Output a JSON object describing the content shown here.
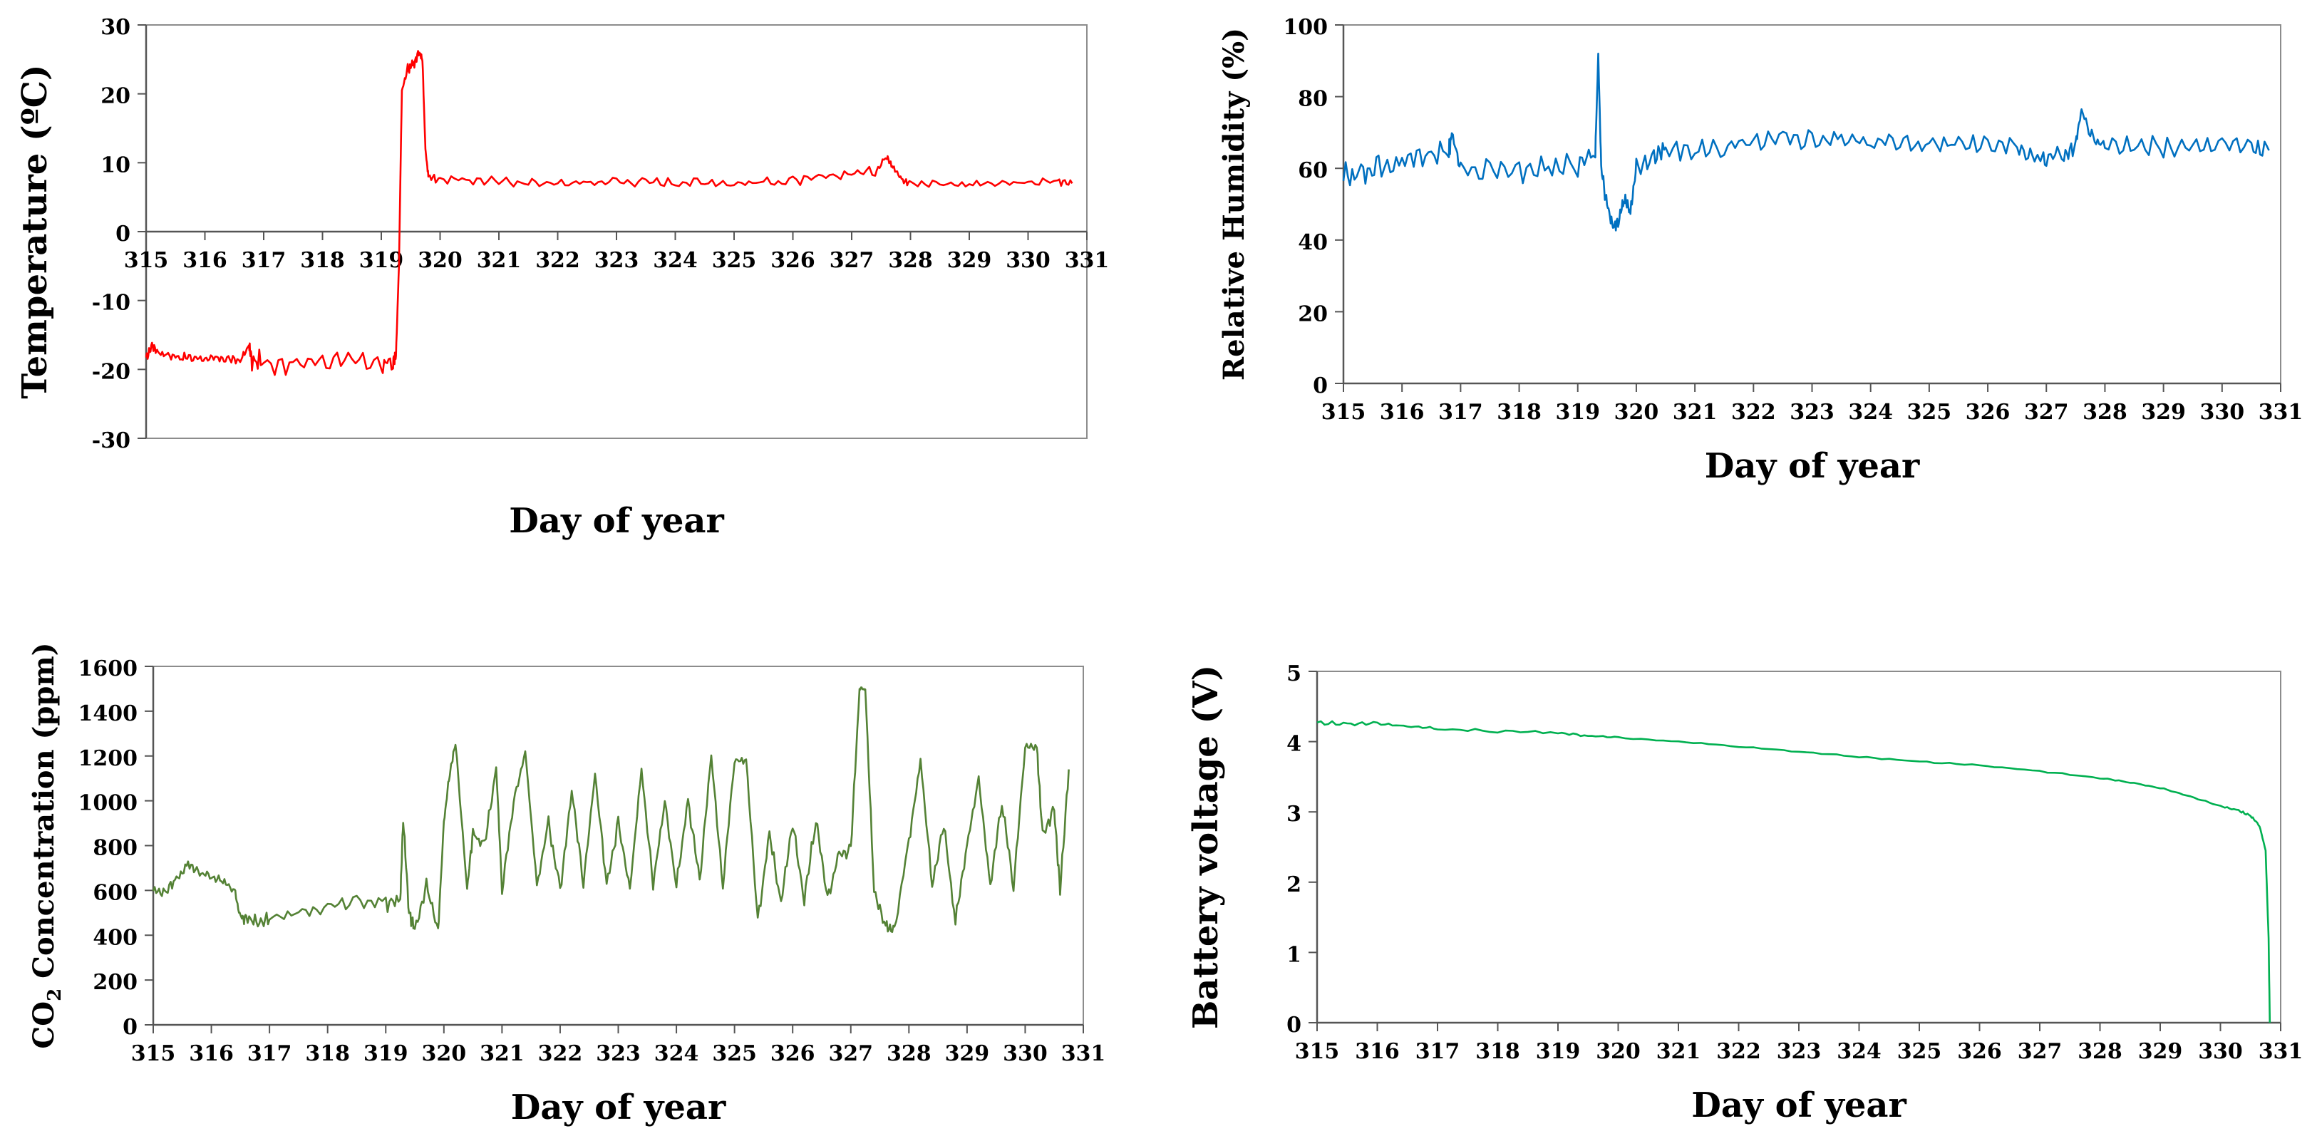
{
  "chart_data": [
    {
      "id": "temperature",
      "type": "line",
      "xlabel": "Day of year",
      "ylabel": "Temperature (ºC)",
      "xlim": [
        315,
        331
      ],
      "ylim": [
        -30,
        30
      ],
      "xticks": [
        "315",
        "316",
        "317",
        "318",
        "319",
        "320",
        "321",
        "322",
        "323",
        "324",
        "325",
        "326",
        "327",
        "328",
        "329",
        "330",
        "331"
      ],
      "yticks": [
        "-30",
        "-20",
        "-10",
        "0",
        "10",
        "20",
        "30"
      ],
      "color": "#ff0000",
      "grid": false,
      "series": [
        {
          "name": "Temperature",
          "x": [
            315.0,
            315.1,
            315.2,
            315.4,
            315.6,
            315.8,
            316.0,
            316.2,
            316.4,
            316.6,
            316.75,
            316.8,
            317.0,
            317.5,
            318.0,
            318.5,
            319.0,
            319.2,
            319.25,
            319.3,
            319.35,
            319.45,
            319.55,
            319.65,
            319.7,
            319.75,
            319.8,
            320.0,
            320.5,
            321.0,
            321.5,
            322.0,
            322.5,
            323.0,
            323.5,
            324.0,
            324.5,
            325.0,
            325.5,
            326.0,
            326.5,
            327.0,
            327.4,
            327.6,
            327.7,
            327.85,
            328.0,
            328.5,
            329.0,
            329.5,
            330.0,
            330.5,
            330.75
          ],
          "y": [
            -18.5,
            -16.5,
            -17.5,
            -18.0,
            -18.2,
            -18.3,
            -18.4,
            -18.5,
            -18.5,
            -18.8,
            -16.5,
            -18.8,
            -19.0,
            -18.8,
            -18.8,
            -18.8,
            -18.8,
            -19.0,
            -18.0,
            -5.0,
            20.5,
            23.5,
            24.5,
            26.0,
            25.0,
            12.0,
            8.0,
            7.5,
            7.5,
            7.3,
            7.2,
            7.0,
            7.1,
            7.3,
            7.2,
            7.1,
            7.3,
            7.0,
            7.2,
            7.3,
            7.8,
            8.5,
            8.8,
            11.0,
            9.5,
            7.5,
            7.0,
            7.0,
            6.9,
            7.0,
            7.1,
            7.3,
            7.0
          ],
          "jitter": [
            0.6,
            0.6,
            0.6,
            0.6,
            0.6,
            0.6,
            0.6,
            0.6,
            0.6,
            0.6,
            0.6,
            1.5,
            1.8,
            1.8,
            1.8,
            1.8,
            1.8,
            1.5,
            0.5,
            0,
            0,
            1.0,
            1.0,
            0.5,
            0.5,
            0,
            0.5,
            0.7,
            0.7,
            0.7,
            0.7,
            0.7,
            0.7,
            0.7,
            0.7,
            0.7,
            0.7,
            0.7,
            0.7,
            0.7,
            0.7,
            0.7,
            0.7,
            0.5,
            0.5,
            0.5,
            0.6,
            0.6,
            0.6,
            0.6,
            0.6,
            0.6,
            0.6
          ]
        }
      ]
    },
    {
      "id": "humidity",
      "type": "line",
      "xlabel": "Day of year",
      "ylabel": "Relative Humidity (%)",
      "xlim": [
        315,
        331
      ],
      "ylim": [
        0,
        100
      ],
      "xticks": [
        "315",
        "316",
        "317",
        "318",
        "319",
        "320",
        "321",
        "322",
        "323",
        "324",
        "325",
        "326",
        "327",
        "328",
        "329",
        "330",
        "331"
      ],
      "yticks": [
        "0",
        "20",
        "40",
        "60",
        "80",
        "100"
      ],
      "color": "#0070c0",
      "grid": false,
      "series": [
        {
          "name": "Relative Humidity",
          "x": [
            315.0,
            315.3,
            315.6,
            316.0,
            316.4,
            316.8,
            316.85,
            317.0,
            317.5,
            318.0,
            318.5,
            319.0,
            319.3,
            319.35,
            319.4,
            319.5,
            319.6,
            319.7,
            319.8,
            319.9,
            320.0,
            320.3,
            320.5,
            321.0,
            321.5,
            322.0,
            322.5,
            323.0,
            323.5,
            324.0,
            324.5,
            325.0,
            325.5,
            326.0,
            326.5,
            326.8,
            327.0,
            327.3,
            327.5,
            327.6,
            327.8,
            328.0,
            328.5,
            329.0,
            329.5,
            330.0,
            330.5,
            330.8
          ],
          "y": [
            58,
            59,
            60,
            62,
            64,
            65,
            70,
            60,
            59,
            59,
            60,
            62,
            64,
            92,
            60,
            50,
            44,
            45,
            52,
            48,
            60,
            63,
            65,
            65,
            66,
            67,
            68,
            68,
            68,
            68,
            67,
            67,
            67,
            67,
            66,
            63,
            63,
            64,
            67,
            76,
            68,
            66,
            66,
            66,
            66,
            66,
            66,
            65
          ],
          "jitter": [
            4,
            4,
            4,
            4,
            4,
            4,
            1,
            4,
            4,
            4,
            4,
            4,
            2,
            0,
            2,
            3,
            2,
            2,
            3,
            2,
            3,
            3,
            3,
            3,
            3,
            3,
            3,
            3,
            3,
            3,
            3,
            3,
            3,
            3,
            3,
            3,
            3,
            3,
            3,
            1,
            3,
            3,
            3,
            3,
            3,
            3,
            3,
            3
          ]
        }
      ]
    },
    {
      "id": "co2",
      "type": "line",
      "xlabel": "Day of year",
      "ylabel": "CO2 Concentration (ppm)",
      "ylabel_main": "CO",
      "ylabel_sub": "2",
      "ylabel_rest": " Concentration (ppm)",
      "xlim": [
        315,
        331
      ],
      "ylim": [
        0,
        1600
      ],
      "xticks": [
        "315",
        "316",
        "317",
        "318",
        "319",
        "320",
        "321",
        "322",
        "323",
        "324",
        "325",
        "326",
        "327",
        "328",
        "329",
        "330",
        "331"
      ],
      "yticks": [
        "0",
        "200",
        "400",
        "600",
        "800",
        "1000",
        "1200",
        "1400",
        "1600"
      ],
      "color": "#548235",
      "grid": false,
      "series": [
        {
          "name": "CO2",
          "x": [
            315.0,
            315.2,
            315.4,
            315.6,
            315.8,
            316.0,
            316.2,
            316.4,
            316.5,
            316.6,
            316.8,
            317.0,
            317.5,
            318.0,
            318.5,
            319.0,
            319.25,
            319.3,
            319.4,
            319.5,
            319.7,
            319.9,
            320.0,
            320.1,
            320.2,
            320.4,
            320.5,
            320.7,
            320.9,
            321.0,
            321.2,
            321.4,
            321.6,
            321.8,
            322.0,
            322.2,
            322.4,
            322.6,
            322.8,
            323.0,
            323.2,
            323.4,
            323.6,
            323.8,
            324.0,
            324.2,
            324.4,
            324.6,
            324.8,
            325.0,
            325.2,
            325.4,
            325.6,
            325.8,
            326.0,
            326.2,
            326.4,
            326.6,
            326.8,
            327.0,
            327.15,
            327.25,
            327.4,
            327.6,
            327.75,
            328.0,
            328.2,
            328.4,
            328.6,
            328.8,
            329.0,
            329.2,
            329.4,
            329.6,
            329.8,
            330.0,
            330.2,
            330.3,
            330.5,
            330.6,
            330.75
          ],
          "y": [
            600,
            590,
            650,
            720,
            680,
            660,
            640,
            600,
            480,
            470,
            470,
            480,
            500,
            520,
            560,
            540,
            560,
            920,
            500,
            430,
            620,
            420,
            900,
            1120,
            1260,
            600,
            860,
            800,
            1150,
            600,
            1000,
            1220,
            620,
            900,
            600,
            1050,
            640,
            1120,
            620,
            900,
            600,
            1140,
            620,
            1000,
            620,
            1000,
            640,
            1200,
            620,
            1180,
            1180,
            460,
            860,
            540,
            900,
            560,
            920,
            560,
            760,
            780,
            1500,
            1500,
            600,
            440,
            420,
            820,
            1180,
            620,
            900,
            460,
            800,
            1100,
            620,
            1000,
            620,
            1240,
            1240,
            850,
            950,
            600,
            1140
          ],
          "jitter": [
            20,
            20,
            20,
            20,
            20,
            20,
            20,
            20,
            20,
            30,
            40,
            40,
            40,
            40,
            40,
            40,
            20,
            20,
            40,
            30,
            40,
            20,
            20,
            20,
            10,
            30,
            30,
            30,
            20,
            30,
            30,
            20,
            30,
            30,
            30,
            30,
            30,
            20,
            30,
            30,
            30,
            20,
            30,
            30,
            30,
            30,
            30,
            20,
            30,
            20,
            20,
            30,
            30,
            30,
            30,
            30,
            30,
            30,
            30,
            30,
            10,
            10,
            30,
            30,
            20,
            30,
            20,
            30,
            30,
            30,
            30,
            20,
            30,
            30,
            30,
            20,
            20,
            40,
            40,
            40,
            20
          ]
        }
      ]
    },
    {
      "id": "battery",
      "type": "line",
      "xlabel": "Day of year",
      "ylabel": "Battery voltage (V)",
      "xlim": [
        315,
        331
      ],
      "ylim": [
        0,
        5
      ],
      "xticks": [
        "315",
        "316",
        "317",
        "318",
        "319",
        "320",
        "321",
        "322",
        "323",
        "324",
        "325",
        "326",
        "327",
        "328",
        "329",
        "330",
        "331"
      ],
      "yticks": [
        "0",
        "1",
        "2",
        "3",
        "4",
        "5"
      ],
      "color": "#00b050",
      "grid": false,
      "series": [
        {
          "name": "Battery voltage",
          "x": [
            315.0,
            315.5,
            316.0,
            316.5,
            317.0,
            318.0,
            319.0,
            319.5,
            320.0,
            321.0,
            322.0,
            323.0,
            324.0,
            325.0,
            326.0,
            327.0,
            328.0,
            328.5,
            329.0,
            329.5,
            330.0,
            330.3,
            330.5,
            330.65,
            330.75,
            330.8,
            330.82
          ],
          "y": [
            4.27,
            4.25,
            4.26,
            4.22,
            4.18,
            4.15,
            4.13,
            4.08,
            4.06,
            4.0,
            3.93,
            3.86,
            3.78,
            3.72,
            3.66,
            3.58,
            3.48,
            3.42,
            3.34,
            3.22,
            3.08,
            3.02,
            2.95,
            2.8,
            2.45,
            1.2,
            0.0
          ],
          "jitter": [
            0.03,
            0.03,
            0.03,
            0.02,
            0.02,
            0.02,
            0.02,
            0.01,
            0.01,
            0.01,
            0.01,
            0.01,
            0.01,
            0.01,
            0.01,
            0.01,
            0.01,
            0.01,
            0.01,
            0.01,
            0.01,
            0.02,
            0.02,
            0.01,
            0,
            0,
            0
          ]
        }
      ]
    }
  ]
}
